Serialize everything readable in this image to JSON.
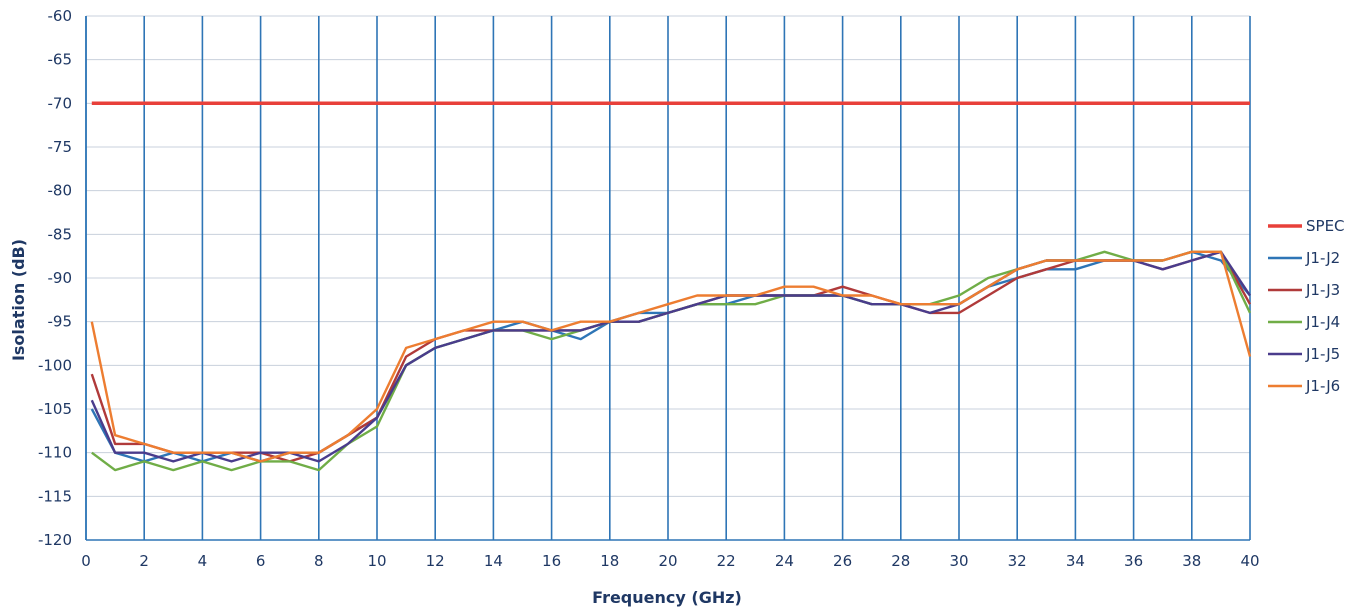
{
  "chart_data": {
    "type": "line",
    "title": "",
    "xlabel": "Frequency (GHz)",
    "ylabel": "Isolation (dB)",
    "xlim": [
      0,
      40
    ],
    "ylim": [
      -120,
      -60
    ],
    "x_ticks": [
      0,
      2,
      4,
      6,
      8,
      10,
      12,
      14,
      16,
      18,
      20,
      22,
      24,
      26,
      28,
      30,
      32,
      34,
      36,
      38,
      40
    ],
    "y_ticks": [
      -60,
      -65,
      -70,
      -75,
      -80,
      -85,
      -90,
      -95,
      -100,
      -105,
      -110,
      -115,
      -120
    ],
    "grid": "vertical lines every 2 GHz, horizontal lines every 5 dB",
    "legend_position": "right",
    "series": [
      {
        "name": "SPEC",
        "color": "#e8403a",
        "x": [
          0.2,
          40
        ],
        "y": [
          -70,
          -70
        ]
      },
      {
        "name": "J1-J2",
        "color": "#2e75b6",
        "x": [
          0.2,
          1,
          2,
          3,
          4,
          5,
          6,
          7,
          8,
          9,
          10,
          11,
          12,
          13,
          14,
          15,
          16,
          17,
          18,
          19,
          20,
          21,
          22,
          23,
          24,
          25,
          26,
          27,
          28,
          29,
          30,
          31,
          32,
          33,
          34,
          35,
          36,
          37,
          38,
          39,
          40
        ],
        "y": [
          -105,
          -110,
          -111,
          -110,
          -111,
          -110,
          -111,
          -110,
          -110,
          -108,
          -106,
          -100,
          -98,
          -97,
          -96,
          -95,
          -96,
          -97,
          -95,
          -94,
          -94,
          -93,
          -93,
          -92,
          -92,
          -92,
          -92,
          -93,
          -93,
          -93,
          -93,
          -91,
          -90,
          -89,
          -89,
          -88,
          -88,
          -88,
          -87,
          -88,
          -92
        ]
      },
      {
        "name": "J1-J3",
        "color": "#b03a3a",
        "x": [
          0.2,
          1,
          2,
          3,
          4,
          5,
          6,
          7,
          8,
          9,
          10,
          11,
          12,
          13,
          14,
          15,
          16,
          17,
          18,
          19,
          20,
          21,
          22,
          23,
          24,
          25,
          26,
          27,
          28,
          29,
          30,
          31,
          32,
          33,
          34,
          35,
          36,
          37,
          38,
          39,
          40
        ],
        "y": [
          -101,
          -109,
          -109,
          -110,
          -110,
          -110,
          -110,
          -111,
          -110,
          -108,
          -106,
          -99,
          -97,
          -96,
          -96,
          -96,
          -96,
          -96,
          -95,
          -95,
          -94,
          -93,
          -92,
          -92,
          -92,
          -92,
          -91,
          -92,
          -93,
          -94,
          -94,
          -92,
          -90,
          -89,
          -88,
          -88,
          -88,
          -89,
          -88,
          -87,
          -93
        ]
      },
      {
        "name": "J1-J4",
        "color": "#70ad47",
        "x": [
          0.2,
          1,
          2,
          3,
          4,
          5,
          6,
          7,
          8,
          9,
          10,
          11,
          12,
          13,
          14,
          15,
          16,
          17,
          18,
          19,
          20,
          21,
          22,
          23,
          24,
          25,
          26,
          27,
          28,
          29,
          30,
          31,
          32,
          33,
          34,
          35,
          36,
          37,
          38,
          39,
          40
        ],
        "y": [
          -110,
          -112,
          -111,
          -112,
          -111,
          -112,
          -111,
          -111,
          -112,
          -109,
          -107,
          -100,
          -98,
          -97,
          -96,
          -96,
          -97,
          -96,
          -95,
          -95,
          -94,
          -93,
          -93,
          -93,
          -92,
          -92,
          -92,
          -93,
          -93,
          -93,
          -92,
          -90,
          -89,
          -88,
          -88,
          -87,
          -88,
          -88,
          -87,
          -87,
          -94
        ]
      },
      {
        "name": "J1-J5",
        "color": "#4a3c8c",
        "x": [
          0.2,
          1,
          2,
          3,
          4,
          5,
          6,
          7,
          8,
          9,
          10,
          11,
          12,
          13,
          14,
          15,
          16,
          17,
          18,
          19,
          20,
          21,
          22,
          23,
          24,
          25,
          26,
          27,
          28,
          29,
          30,
          31,
          32,
          33,
          34,
          35,
          36,
          37,
          38,
          39,
          40
        ],
        "y": [
          -104,
          -110,
          -110,
          -111,
          -110,
          -111,
          -110,
          -110,
          -111,
          -109,
          -106,
          -100,
          -98,
          -97,
          -96,
          -96,
          -96,
          -96,
          -95,
          -95,
          -94,
          -93,
          -92,
          -92,
          -92,
          -92,
          -92,
          -93,
          -93,
          -94,
          -93,
          -91,
          -89,
          -88,
          -88,
          -88,
          -88,
          -89,
          -88,
          -87,
          -92
        ]
      },
      {
        "name": "J1-J6",
        "color": "#ed7d31",
        "x": [
          0.2,
          1,
          2,
          3,
          4,
          5,
          6,
          7,
          8,
          9,
          10,
          11,
          12,
          13,
          14,
          15,
          16,
          17,
          18,
          19,
          20,
          21,
          22,
          23,
          24,
          25,
          26,
          27,
          28,
          29,
          30,
          31,
          32,
          33,
          34,
          35,
          36,
          37,
          38,
          39,
          40
        ],
        "y": [
          -95,
          -108,
          -109,
          -110,
          -110,
          -110,
          -111,
          -110,
          -110,
          -108,
          -105,
          -98,
          -97,
          -96,
          -95,
          -95,
          -96,
          -95,
          -95,
          -94,
          -93,
          -92,
          -92,
          -92,
          -91,
          -91,
          -92,
          -92,
          -93,
          -93,
          -93,
          -91,
          -89,
          -88,
          -88,
          -88,
          -88,
          -88,
          -87,
          -87,
          -99
        ]
      }
    ]
  }
}
